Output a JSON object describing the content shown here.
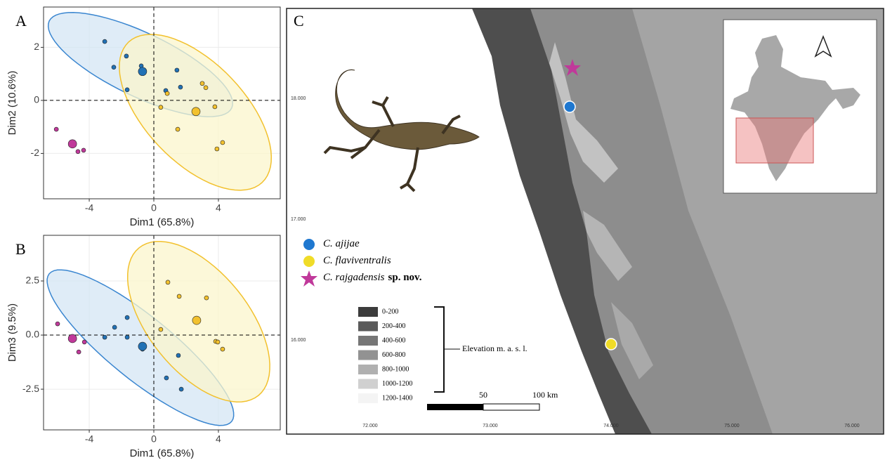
{
  "chart_data": [
    {
      "type": "scatter",
      "label": "A",
      "xlabel": "Dim1 (65.8%)",
      "ylabel": "Dim2 (10.6%)",
      "xlim": [
        -6.83,
        7.83
      ],
      "ylim": [
        -3.71,
        3.52
      ],
      "xticks": [
        -4,
        0,
        4
      ],
      "yticks": [
        -2,
        0,
        2
      ],
      "grid": true,
      "zero_lines": true,
      "series": [
        {
          "color": "#2171b5",
          "fill": "#d4e6f4",
          "stroke": "#3a86d0",
          "x": [
            -3.04,
            -2.48,
            -1.7,
            -1.65,
            -0.78,
            0.74,
            1.43,
            1.65
          ],
          "values": [
            2.22,
            1.25,
            1.67,
            0.4,
            1.3,
            0.37,
            1.14,
            0.5
          ],
          "centroid": [
            -0.7,
            1.09
          ],
          "ellipse": {
            "cx": -0.83,
            "cy": 1.35,
            "a": [
              5.65,
              -1.64
            ],
            "b": [
              0.84,
              1.08
            ]
          }
        },
        {
          "color": "#f2c12e",
          "fill": "#fbf6cc",
          "stroke": "#f2c12e",
          "x": [
            0.83,
            0.43,
            1.48,
            3.0,
            3.22,
            3.78,
            4.26,
            3.91
          ],
          "values": [
            0.26,
            -0.26,
            -1.09,
            0.64,
            0.48,
            -0.24,
            -1.59,
            -1.83
          ],
          "centroid": [
            2.61,
            -0.42
          ],
          "ellipse": {
            "cx": 2.57,
            "cy": -0.45,
            "a": [
              4.13,
              -2.65
            ],
            "b": [
              -2.26,
              -1.27
            ]
          }
        },
        {
          "color": "#c0399a",
          "x": [
            -6.04,
            -4.7,
            -4.35
          ],
          "values": [
            -1.09,
            -1.93,
            -1.88
          ],
          "centroid": [
            -5.04,
            -1.64
          ]
        }
      ]
    },
    {
      "type": "scatter",
      "label": "B",
      "xlabel": "Dim1 (65.8%)",
      "ylabel": "Dim3 (9.5%)",
      "xlim": [
        -6.83,
        7.83
      ],
      "ylim": [
        -4.38,
        4.61
      ],
      "xticks": [
        -4,
        0,
        4
      ],
      "yticks": [
        -2.5,
        {
          "value": 0,
          "label": "0.0"
        },
        2.5
      ],
      "grid": true,
      "zero_lines": true,
      "series": [
        {
          "color": "#2171b5",
          "fill": "#d4e6f4",
          "stroke": "#3a86d0",
          "x": [
            -3.04,
            -2.43,
            -1.65,
            -1.65,
            -0.7,
            1.52,
            0.78,
            1.7
          ],
          "values": [
            -0.1,
            0.36,
            0.81,
            -0.1,
            -0.65,
            -0.94,
            -1.98,
            -2.5
          ],
          "centroid": [
            -0.7,
            -0.52
          ],
          "ellipse": {
            "cx": -0.83,
            "cy": -0.58,
            "a": [
              5.65,
              -3.41
            ],
            "b": [
              1.22,
              1.14
            ]
          }
        },
        {
          "color": "#f2c12e",
          "fill": "#fbf6cc",
          "stroke": "#f2c12e",
          "x": [
            0.87,
            1.57,
            0.43,
            3.26,
            3.83,
            3.96,
            4.26
          ],
          "values": [
            2.44,
            1.79,
            0.26,
            1.72,
            -0.29,
            -0.32,
            -0.65
          ],
          "centroid": [
            2.65,
            0.68
          ],
          "ellipse": {
            "cx": 2.78,
            "cy": 0.62,
            "a": [
              3.7,
              -3.41
            ],
            "b": [
              -2.39,
              -1.46
            ]
          }
        },
        {
          "color": "#c0399a",
          "x": [
            -5.96,
            -4.3,
            -4.65
          ],
          "values": [
            0.52,
            -0.32,
            -0.78
          ],
          "centroid": [
            -5.04,
            -0.16
          ]
        }
      ]
    }
  ],
  "map": {
    "label": "C",
    "lat_labels": [
      "18.000",
      "17.000",
      "16.000"
    ],
    "lon_labels": [
      "72.000",
      "73.000",
      "74.000",
      "75.000",
      "76.000"
    ],
    "legend": [
      {
        "name": "C. ajijae"
      },
      {
        "name": "C. flaviventralis"
      },
      {
        "name": "C. rajgadensis",
        "suffix": "sp. nov."
      }
    ],
    "elevation_classes": [
      "0-200",
      "200-400",
      "400-600",
      "600-800",
      "800-1000",
      "1000-1200",
      "1200-1400"
    ],
    "elevation_title": "Elevation m. a. s. l.",
    "scale_labels": [
      "50",
      "100 km"
    ]
  }
}
